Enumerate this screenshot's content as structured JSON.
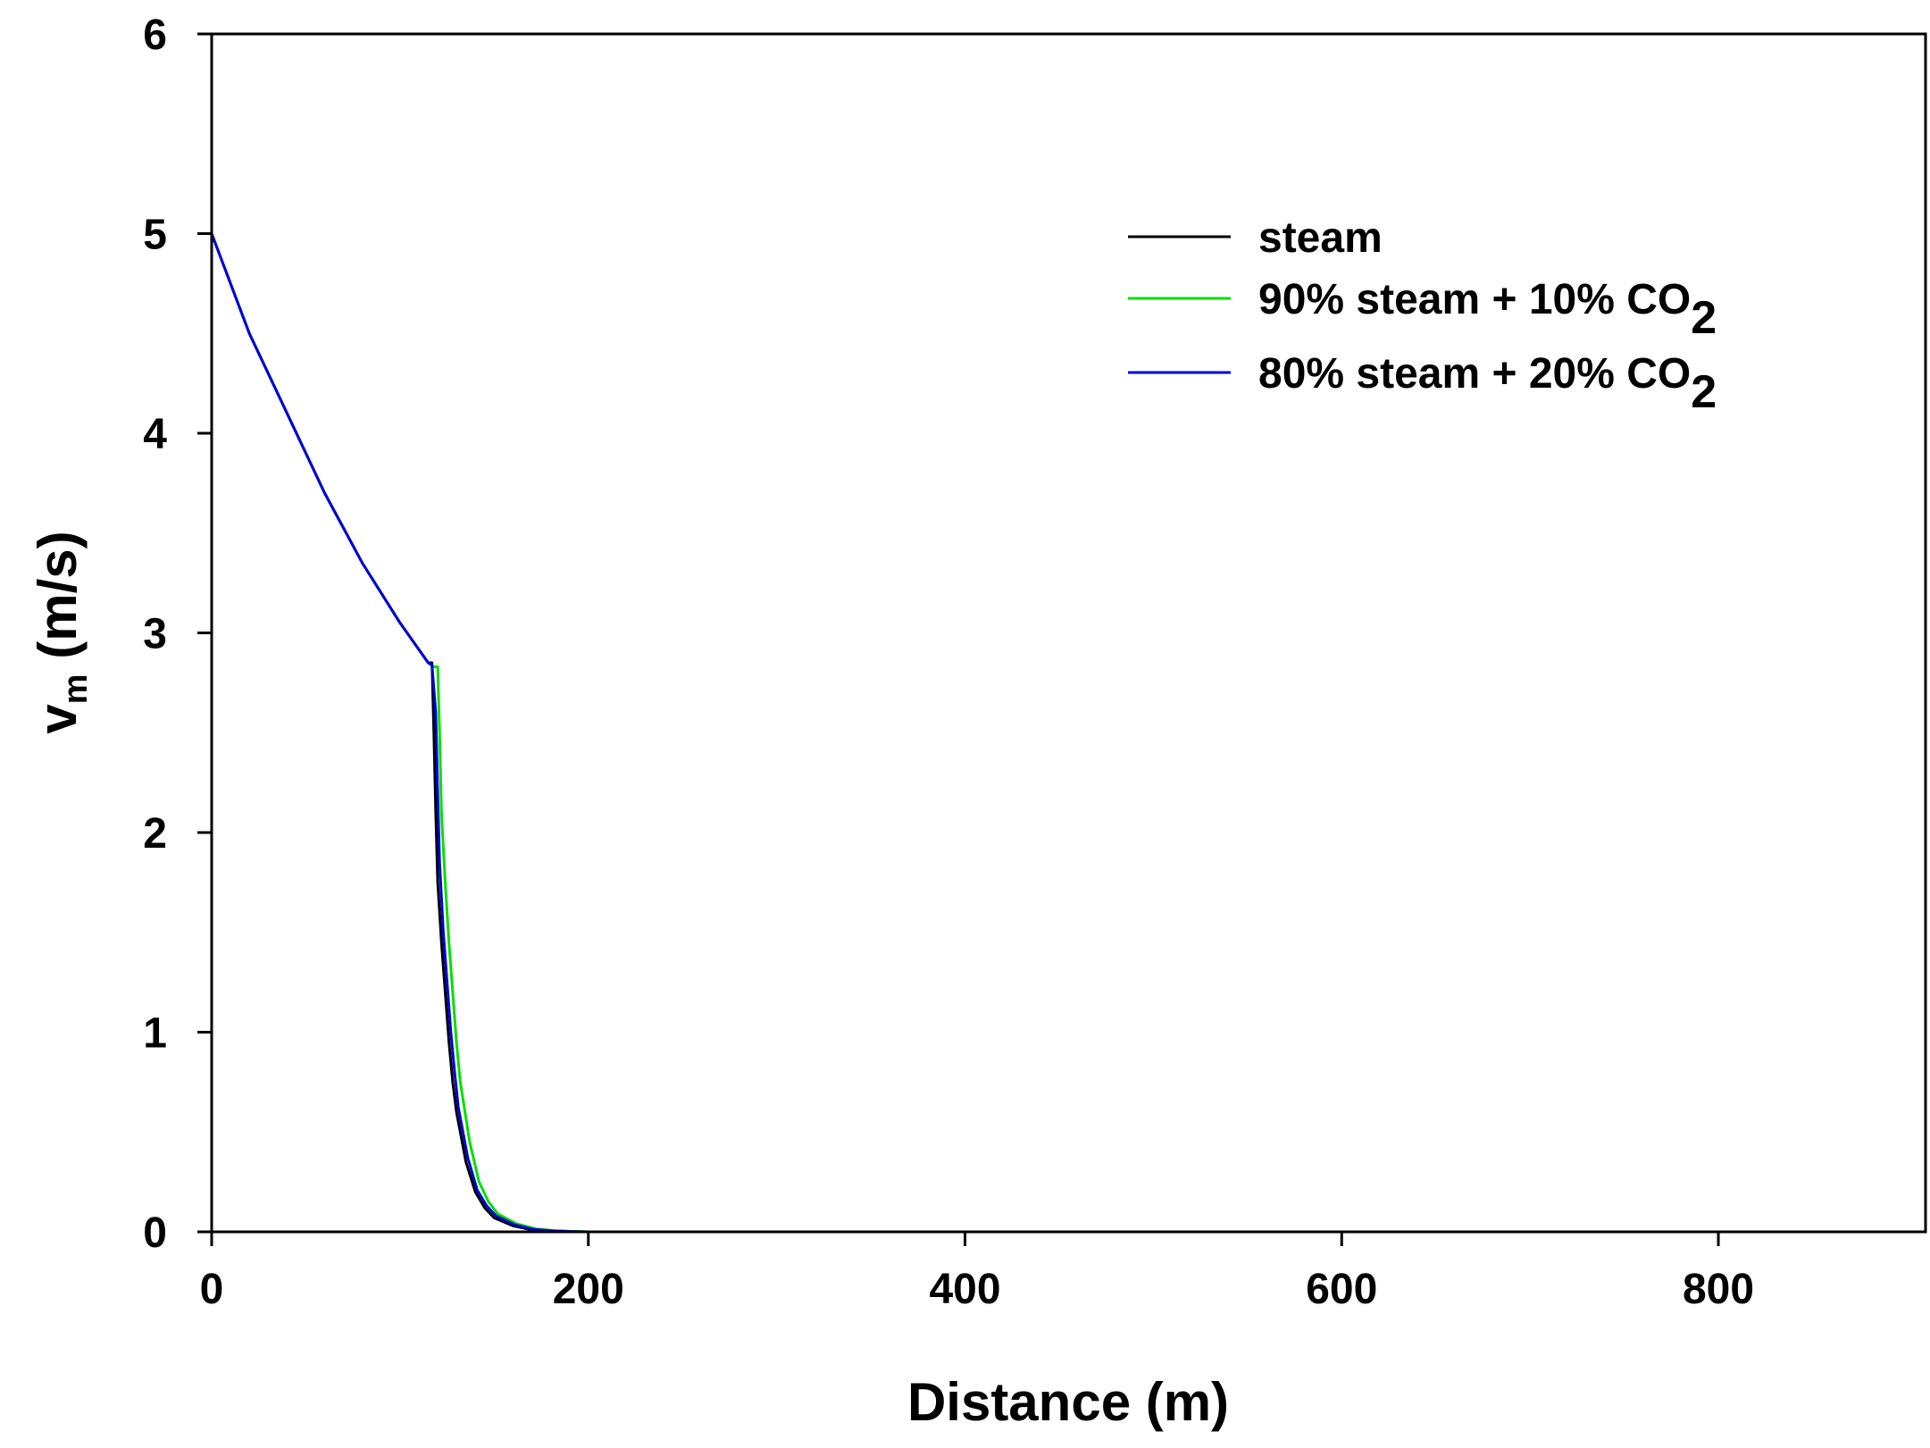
{
  "chart_data": {
    "type": "line",
    "xlabel": "Distance (m)",
    "ylabel_main": "v",
    "ylabel_sub": "m",
    "ylabel_unit": " (m/s)",
    "xlim": [
      0,
      910
    ],
    "ylim": [
      0,
      6
    ],
    "xticks": [
      0,
      200,
      400,
      600,
      800
    ],
    "yticks": [
      0,
      1,
      2,
      3,
      4,
      5,
      6
    ],
    "grid": false,
    "legend_position": "top-right",
    "series": [
      {
        "name": "steam",
        "label_main": "steam",
        "label_sub": "",
        "color": "#000000",
        "x": [
          0,
          20,
          40,
          60,
          80,
          100,
          115,
          117,
          118,
          119,
          120,
          122,
          124,
          126,
          128,
          130,
          135,
          140,
          145,
          150,
          160,
          170,
          180,
          190,
          200,
          300,
          400,
          500,
          560
        ],
        "y": [
          5.0,
          4.5,
          4.1,
          3.7,
          3.35,
          3.05,
          2.85,
          2.85,
          2.5,
          2.1,
          1.75,
          1.45,
          1.2,
          0.95,
          0.75,
          0.6,
          0.35,
          0.2,
          0.12,
          0.07,
          0.03,
          0.01,
          0.005,
          0.002,
          0,
          0,
          0,
          0,
          0
        ]
      },
      {
        "name": "90% steam + 10% CO2",
        "label_main": "90% steam + 10% CO",
        "label_sub": "2",
        "color": "#00e000",
        "x": [
          0,
          20,
          40,
          60,
          80,
          100,
          115,
          118,
          120,
          121,
          122,
          124,
          126,
          128,
          130,
          132,
          137,
          142,
          147,
          152,
          162,
          172,
          182,
          192,
          200,
          300,
          400,
          500,
          550
        ],
        "y": [
          5.0,
          4.5,
          4.1,
          3.7,
          3.35,
          3.05,
          2.85,
          2.83,
          2.83,
          2.5,
          2.1,
          1.75,
          1.45,
          1.2,
          0.95,
          0.75,
          0.45,
          0.25,
          0.15,
          0.09,
          0.04,
          0.015,
          0.006,
          0.002,
          0,
          0,
          0,
          0,
          0
        ]
      },
      {
        "name": "80% steam + 20% CO2",
        "label_main": "80% steam + 20% CO",
        "label_sub": "2",
        "color": "#0000dd",
        "x": [
          0,
          20,
          40,
          60,
          80,
          100,
          115,
          117,
          119,
          120,
          121,
          123,
          125,
          127,
          129,
          131,
          136,
          141,
          146,
          151,
          161,
          171,
          181,
          191,
          200,
          300,
          400,
          487
        ],
        "y": [
          5.0,
          4.5,
          4.1,
          3.7,
          3.35,
          3.05,
          2.85,
          2.84,
          2.6,
          2.2,
          1.85,
          1.5,
          1.25,
          1.0,
          0.8,
          0.62,
          0.37,
          0.21,
          0.13,
          0.08,
          0.035,
          0.012,
          0.005,
          0.002,
          0,
          0,
          0,
          0
        ]
      }
    ]
  }
}
